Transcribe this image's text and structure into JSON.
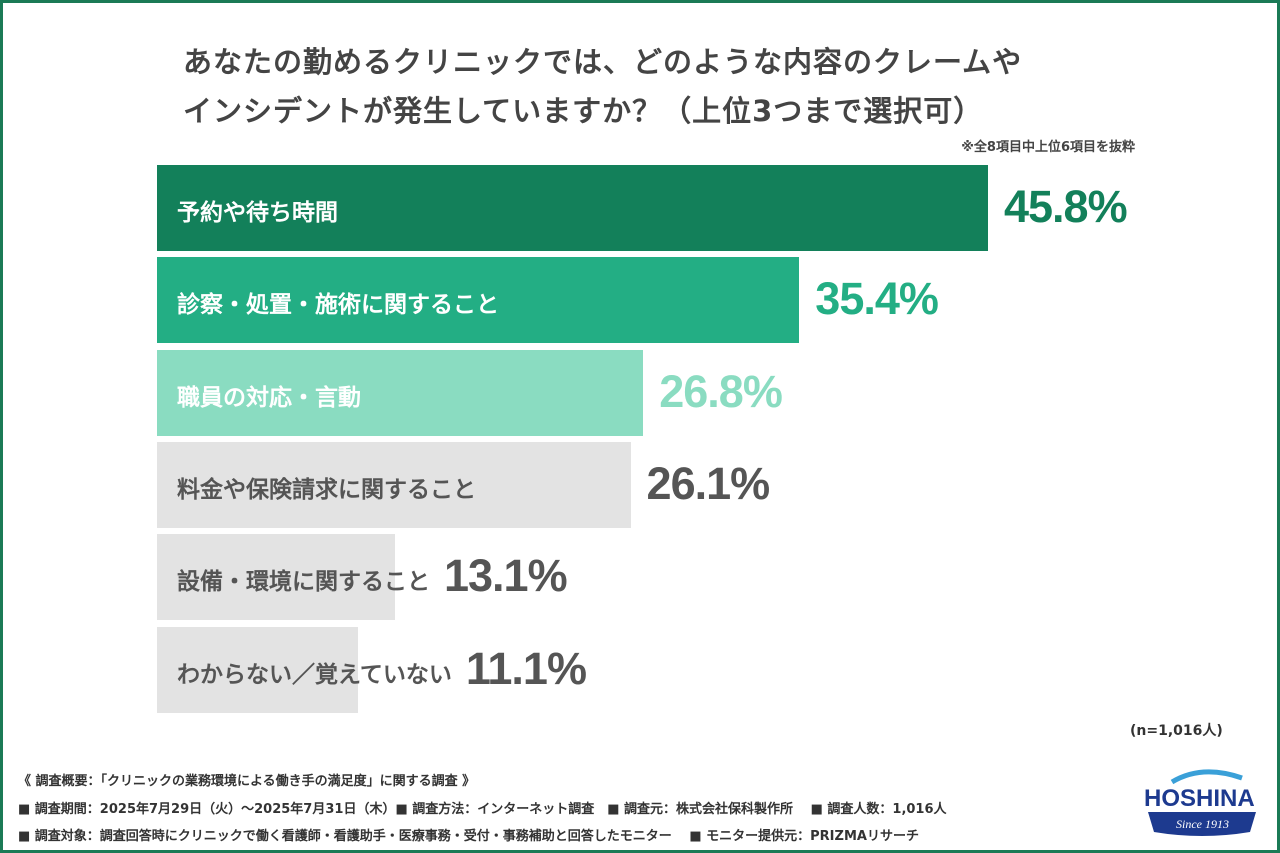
{
  "chart_data": {
    "type": "bar",
    "orientation": "horizontal",
    "title": "あなたの勤めるクリニックでは、どのような内容のクレームやインシデントが発生していますか？（上位3つまで選択可）",
    "title_lines": [
      "あなたの勤めるクリニックでは、どのような内容のクレームや",
      "インシデントが発生していますか？（上位3つまで選択可）"
    ],
    "note": "※全8項目中上位6項目を抜粋",
    "categories": [
      "予約や待ち時間",
      "診察・処置・施術に関すること",
      "職員の対応・言動",
      "料金や保険請求に関すること",
      "設備・環境に関すること",
      "わからない／覚えていない"
    ],
    "values": [
      45.8,
      35.4,
      26.8,
      26.1,
      13.1,
      11.1
    ],
    "value_labels": [
      "45.8%",
      "35.4%",
      "26.8%",
      "26.1%",
      "13.1%",
      "11.1%"
    ],
    "unit": "%",
    "colors": [
      "#13805a",
      "#23ae84",
      "#8adcc1",
      "#e3e3e3",
      "#e3e3e3",
      "#e3e3e3"
    ],
    "label_colors": [
      "#ffffff",
      "#ffffff",
      "#ffffff",
      "#555555",
      "#555555",
      "#555555"
    ],
    "value_colors": [
      "#13805a",
      "#23ae84",
      "#8adcc1",
      "#555555",
      "#555555",
      "#555555"
    ],
    "sample": "(n=1,016人)"
  },
  "footer": {
    "lines": [
      "《 調査概要：「クリニックの業務環境による働き手の満足度」に関する調査 》",
      "■ 調査期間：2025年7月29日（火）～2025年7月31日（木）■ 調査方法：インターネット調査　■ 調査元：株式会社保科製作所　 ■ 調査人数：1,016人",
      "■ 調査対象：調査回答時にクリニックで働く看護師・看護助手・医療事務・受付・事務補助と回答したモニター　 ■ モニター提供元：PRIZMAリサーチ"
    ]
  },
  "logo": {
    "name": "HOSHINA",
    "tagline": "Since 1913",
    "color": "#1d3a8f"
  }
}
